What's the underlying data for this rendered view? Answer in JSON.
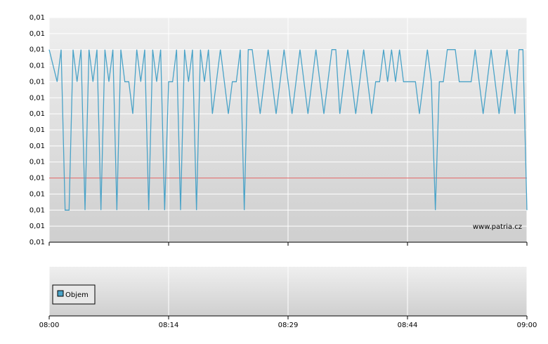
{
  "chart_data": {
    "type": "line",
    "x": [
      0,
      0.5,
      1,
      1.5,
      2,
      2.5,
      3,
      3.5,
      4,
      4.5,
      5,
      5.5,
      6,
      6.5,
      7,
      7.5,
      8,
      8.5,
      9,
      9.5,
      10,
      10.5,
      11,
      11.5,
      12,
      12.5,
      13,
      13.5,
      14,
      14.5,
      15,
      15.5,
      16,
      16.5,
      17,
      17.5,
      18,
      18.5,
      19,
      19.5,
      20,
      20.5,
      21,
      21.5,
      22,
      22.5,
      23,
      23.5,
      24,
      24.5,
      25,
      25.5,
      26,
      26.5,
      27,
      27.5,
      28,
      28.5,
      29,
      29.5,
      30,
      30.5,
      31,
      31.5,
      32,
      32.5,
      33,
      33.5,
      34,
      34.5,
      35,
      35.5,
      36,
      36.5,
      37,
      37.5,
      38,
      38.5,
      39,
      39.5,
      40,
      40.5,
      41,
      41.5,
      42,
      42.5,
      43,
      43.5,
      44,
      44.5,
      45,
      45.5,
      46,
      46.5,
      47,
      47.5,
      48,
      48.5,
      49,
      49.5,
      50,
      50.5,
      51,
      51.5,
      52,
      52.5,
      53,
      53.5,
      54,
      54.5,
      55,
      55.5,
      56,
      56.5,
      57,
      57.5,
      58,
      58.5,
      59,
      59.5,
      60
    ],
    "series": [
      {
        "color": "#4aa3c8",
        "values": [
          0.011,
          0.0108,
          0.0106,
          0.011,
          0.009,
          0.009,
          0.011,
          0.0106,
          0.011,
          0.009,
          0.011,
          0.0106,
          0.011,
          0.009,
          0.011,
          0.0106,
          0.011,
          0.009,
          0.011,
          0.0106,
          0.0106,
          0.0102,
          0.011,
          0.0106,
          0.011,
          0.009,
          0.011,
          0.0106,
          0.011,
          0.009,
          0.0106,
          0.0106,
          0.011,
          0.009,
          0.011,
          0.0106,
          0.011,
          0.009,
          0.011,
          0.0106,
          0.011,
          0.0102,
          0.0106,
          0.011,
          0.0106,
          0.0102,
          0.0106,
          0.0106,
          0.011,
          0.009,
          0.011,
          0.011,
          0.0106,
          0.0102,
          0.0106,
          0.011,
          0.0106,
          0.0102,
          0.0106,
          0.011,
          0.0106,
          0.0102,
          0.0106,
          0.011,
          0.0106,
          0.0102,
          0.0106,
          0.011,
          0.0106,
          0.0102,
          0.0106,
          0.011,
          0.011,
          0.0102,
          0.0106,
          0.011,
          0.0106,
          0.0102,
          0.0106,
          0.011,
          0.0106,
          0.0102,
          0.0106,
          0.0106,
          0.011,
          0.0106,
          0.011,
          0.0106,
          0.011,
          0.0106,
          0.0106,
          0.0106,
          0.0106,
          0.0102,
          0.0106,
          0.011,
          0.0106,
          0.009,
          0.0106,
          0.0106,
          0.011,
          0.011,
          0.011,
          0.0106,
          0.0106,
          0.0106,
          0.0106,
          0.011,
          0.0106,
          0.0102,
          0.0106,
          0.011,
          0.0106,
          0.0102,
          0.0106,
          0.011,
          0.0106,
          0.0102,
          0.011,
          0.011,
          0.009
        ]
      }
    ],
    "reference_line": {
      "value": 0.0094,
      "color": "#e07070"
    },
    "xlim": [
      0,
      60
    ],
    "xticks": [
      {
        "value": 0,
        "label": "08:00"
      },
      {
        "value": 15,
        "label": "08:14"
      },
      {
        "value": 30,
        "label": "08:29"
      },
      {
        "value": 45,
        "label": "08:44"
      },
      {
        "value": 60,
        "label": "09:00"
      }
    ],
    "ylim": [
      0.0086,
      0.0114
    ],
    "yticks": [
      {
        "value": 0.0086,
        "label": "0,01"
      },
      {
        "value": 0.0088,
        "label": "0,01"
      },
      {
        "value": 0.009,
        "label": "0,01"
      },
      {
        "value": 0.0092,
        "label": "0,01"
      },
      {
        "value": 0.0094,
        "label": "0,01"
      },
      {
        "value": 0.0096,
        "label": "0,01"
      },
      {
        "value": 0.0098,
        "label": "0,01"
      },
      {
        "value": 0.01,
        "label": "0,01"
      },
      {
        "value": 0.0102,
        "label": "0,01"
      },
      {
        "value": 0.0104,
        "label": "0,01"
      },
      {
        "value": 0.0106,
        "label": "0,01"
      },
      {
        "value": 0.0108,
        "label": "0,01"
      },
      {
        "value": 0.011,
        "label": "0,01"
      },
      {
        "value": 0.0112,
        "label": "0,01"
      },
      {
        "value": 0.0114,
        "label": "0,01"
      }
    ],
    "grid": true,
    "watermark": "www.patria.cz",
    "volume_legend": {
      "name": "Objem",
      "color": "#4aa3c8"
    }
  }
}
